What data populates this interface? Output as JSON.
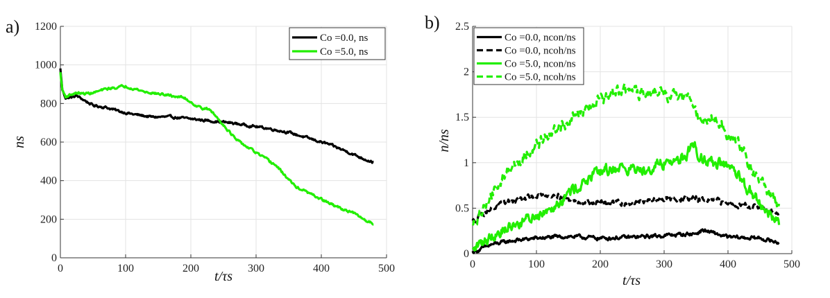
{
  "chart_data": [
    {
      "panel": "a)",
      "type": "line",
      "xlabel": "t/τs",
      "ylabel": "ns",
      "xlim": [
        0,
        500
      ],
      "ylim": [
        0,
        1200
      ],
      "xticks": [
        "0",
        "100",
        "200",
        "300",
        "400",
        "500"
      ],
      "yticks": [
        "0",
        "200",
        "400",
        "600",
        "800",
        "1000",
        "1200"
      ],
      "grid": true,
      "legend_position": "top-right",
      "series": [
        {
          "name": "Co =0.0, ns",
          "color": "#000000",
          "dash": "solid",
          "noise": 6,
          "x": [
            0,
            3,
            8,
            15,
            25,
            35,
            50,
            70,
            90,
            110,
            140,
            170,
            200,
            230,
            260,
            290,
            320,
            350,
            380,
            410,
            440,
            460,
            480
          ],
          "y": [
            980,
            870,
            830,
            830,
            840,
            820,
            790,
            780,
            760,
            745,
            730,
            730,
            720,
            710,
            700,
            685,
            670,
            650,
            620,
            590,
            550,
            520,
            495
          ]
        },
        {
          "name": "Co =5.0, ns",
          "color": "#22ee00",
          "dash": "solid",
          "noise": 6,
          "x": [
            0,
            3,
            8,
            15,
            25,
            35,
            50,
            70,
            100,
            130,
            160,
            190,
            210,
            230,
            250,
            270,
            300,
            330,
            360,
            390,
            420,
            450,
            470,
            480
          ],
          "y": [
            960,
            870,
            835,
            845,
            855,
            850,
            855,
            875,
            890,
            860,
            845,
            830,
            785,
            765,
            690,
            610,
            545,
            480,
            370,
            320,
            270,
            230,
            190,
            178
          ]
        }
      ]
    },
    {
      "panel": "b)",
      "type": "line",
      "xlabel": "t/τs",
      "ylabel": "n/ns",
      "xlim": [
        0,
        500
      ],
      "ylim": [
        0,
        2.5
      ],
      "xticks": [
        "0",
        "100",
        "200",
        "300",
        "400",
        "500"
      ],
      "yticks": [
        "0",
        "0.5",
        "1",
        "1.5",
        "2",
        "2.5"
      ],
      "grid": true,
      "legend_position": "top-left",
      "series": [
        {
          "name": "Co =0.0, ncon/ns",
          "color": "#000000",
          "dash": "solid",
          "noise": 0.02,
          "x": [
            0,
            10,
            30,
            60,
            100,
            150,
            200,
            250,
            300,
            350,
            360,
            400,
            450,
            480
          ],
          "y": [
            0.02,
            0.04,
            0.1,
            0.14,
            0.17,
            0.19,
            0.17,
            0.18,
            0.2,
            0.22,
            0.26,
            0.18,
            0.17,
            0.12
          ]
        },
        {
          "name": "Co =0.0, ncoh/ns",
          "color": "#000000",
          "dash": "dashed",
          "noise": 0.03,
          "x": [
            0,
            10,
            30,
            60,
            100,
            130,
            160,
            200,
            250,
            300,
            350,
            400,
            440,
            460,
            480
          ],
          "y": [
            0.35,
            0.42,
            0.5,
            0.58,
            0.63,
            0.65,
            0.58,
            0.56,
            0.56,
            0.6,
            0.6,
            0.56,
            0.52,
            0.48,
            0.42
          ]
        },
        {
          "name": "Co =5.0, ncon/ns",
          "color": "#22ee00",
          "dash": "solid",
          "noise": 0.06,
          "x": [
            0,
            10,
            30,
            60,
            100,
            130,
            160,
            200,
            230,
            260,
            300,
            330,
            345,
            360,
            400,
            420,
            440,
            460,
            480
          ],
          "y": [
            0.02,
            0.1,
            0.2,
            0.3,
            0.42,
            0.55,
            0.72,
            0.9,
            0.95,
            0.92,
            1.0,
            1.05,
            1.2,
            1.05,
            0.95,
            0.8,
            0.65,
            0.45,
            0.35
          ]
        },
        {
          "name": "Co =5.0, ncoh/ns",
          "color": "#22ee00",
          "dash": "dashed",
          "noise": 0.06,
          "x": [
            0,
            10,
            30,
            60,
            90,
            120,
            150,
            180,
            210,
            240,
            260,
            290,
            320,
            340,
            360,
            380,
            400,
            420,
            440,
            460,
            480
          ],
          "y": [
            0.3,
            0.4,
            0.65,
            0.95,
            1.15,
            1.3,
            1.45,
            1.6,
            1.72,
            1.82,
            1.75,
            1.78,
            1.72,
            1.7,
            1.45,
            1.5,
            1.3,
            1.2,
            0.9,
            0.7,
            0.5
          ]
        }
      ]
    }
  ]
}
